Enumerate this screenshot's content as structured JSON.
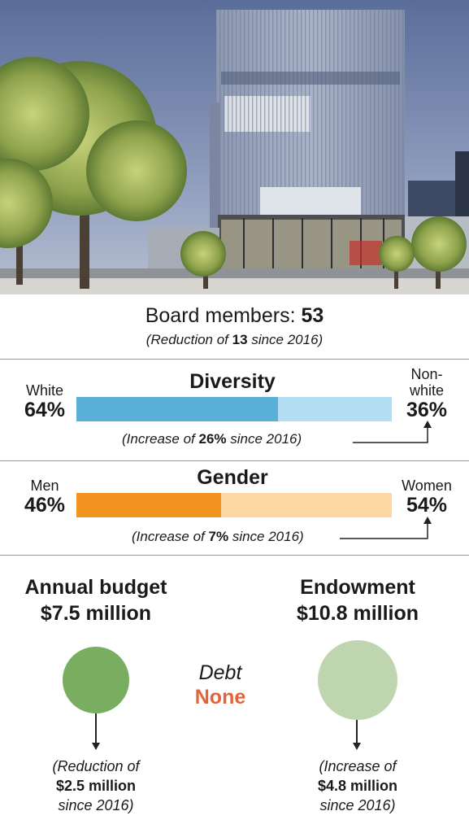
{
  "colors": {
    "diversity_main": "#58B0D8",
    "diversity_light": "#B3DDF2",
    "gender_main": "#F29320",
    "gender_light": "#FDD7A1",
    "budget_circle": "#79AE60",
    "endowment_circle": "#BFD5AF",
    "debt_accent": "#E3643A"
  },
  "photo": {
    "description_icon": "building-photo"
  },
  "board": {
    "label": "Board members:",
    "value": "53",
    "sub_prefix": "(Reduction of",
    "sub_value": "13",
    "sub_suffix": "since 2016)"
  },
  "chart_data": [
    {
      "type": "bar",
      "title": "Diversity",
      "categories": [
        "White",
        "Non-white"
      ],
      "values": [
        64,
        36
      ],
      "value_labels": [
        "64%",
        "36%"
      ],
      "note_prefix": "(Increase of",
      "note_value": "26%",
      "note_suffix": "since 2016)"
    },
    {
      "type": "bar",
      "title": "Gender",
      "categories": [
        "Men",
        "Women"
      ],
      "values": [
        46,
        54
      ],
      "value_labels": [
        "46%",
        "54%"
      ],
      "note_prefix": "(Increase of",
      "note_value": "7%",
      "note_suffix": "since 2016)"
    }
  ],
  "nonwhite_line1": "Non-",
  "nonwhite_line2": "white",
  "finance": {
    "budget": {
      "title": "Annual budget",
      "amount": "$7.5 million",
      "note_prefix": "(Reduction of",
      "note_value": "$2.5 million",
      "note_suffix": "since 2016)"
    },
    "endowment": {
      "title": "Endowment",
      "amount": "$10.8 million",
      "note_prefix": "(Increase of",
      "note_value": "$4.8 million",
      "note_suffix": "since 2016)"
    },
    "debt": {
      "label": "Debt",
      "value": "None"
    }
  }
}
